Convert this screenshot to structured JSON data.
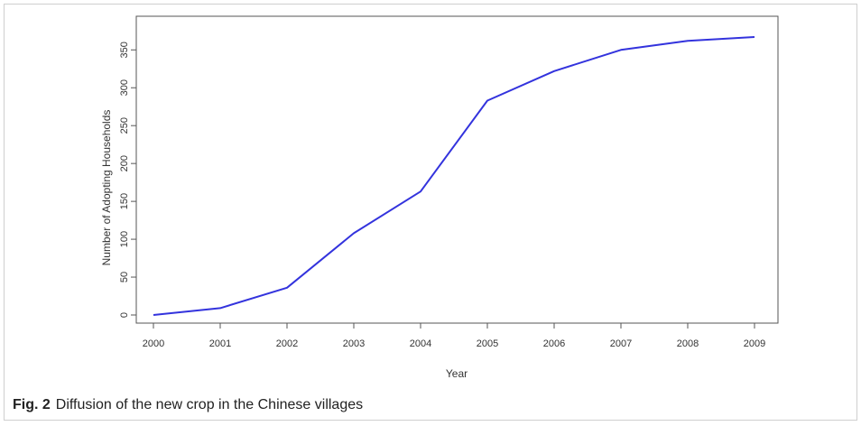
{
  "figure": {
    "label": "Fig. 2",
    "caption": "Diffusion of the new crop in the Chinese villages"
  },
  "colors": {
    "line": "#3333dd",
    "axis": "#555555",
    "text": "#333333"
  },
  "chart_data": {
    "type": "line",
    "title": "",
    "xlabel": "Year",
    "ylabel": "Number of Adopting Households",
    "x": [
      2000,
      2001,
      2002,
      2003,
      2004,
      2005,
      2006,
      2007,
      2008,
      2009
    ],
    "series": [
      {
        "values": [
          0,
          9,
          36,
          108,
          163,
          283,
          322,
          350,
          362,
          367
        ]
      }
    ],
    "xlim": [
      2000,
      2009
    ],
    "ylim": [
      0,
      367
    ],
    "xticks": [
      "2000",
      "2001",
      "2002",
      "2003",
      "2004",
      "2005",
      "2006",
      "2007",
      "2008",
      "2009"
    ],
    "yticks": [
      "0",
      "50",
      "100",
      "150",
      "200",
      "250",
      "300",
      "350"
    ],
    "grid": false,
    "legend": "none"
  }
}
